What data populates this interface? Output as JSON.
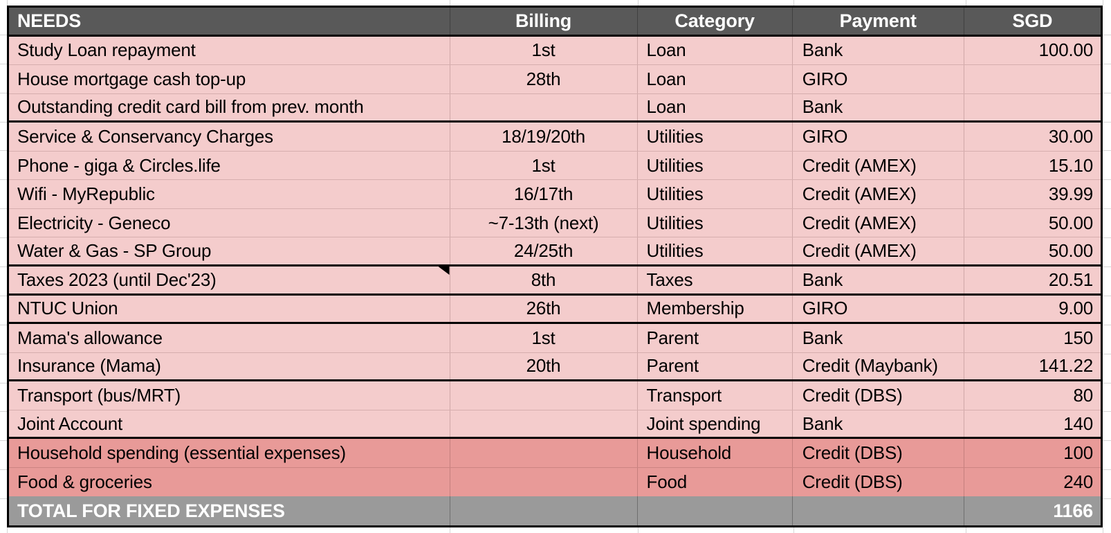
{
  "table": {
    "header": {
      "name": "NEEDS",
      "billing": "Billing",
      "category": "Category",
      "payment": "Payment",
      "amount": "SGD"
    },
    "rows": [
      {
        "name": "Study Loan repayment",
        "billing": "1st",
        "category": "Loan",
        "payment": "Bank",
        "amount": "100.00",
        "highlight": false,
        "section_end": false,
        "has_note_marker": false
      },
      {
        "name": "House mortgage cash top-up",
        "billing": "28th",
        "category": "Loan",
        "payment": "GIRO",
        "amount": "",
        "highlight": false,
        "section_end": false,
        "has_note_marker": false
      },
      {
        "name": "Outstanding credit card bill from prev. month",
        "billing": "",
        "category": "Loan",
        "payment": "Bank",
        "amount": "",
        "highlight": false,
        "section_end": true,
        "has_note_marker": false
      },
      {
        "name": "Service & Conservancy Charges",
        "billing": "18/19/20th",
        "category": "Utilities",
        "payment": "GIRO",
        "amount": "30.00",
        "highlight": false,
        "section_end": false,
        "has_note_marker": false
      },
      {
        "name": "Phone - giga & Circles.life",
        "billing": "1st",
        "category": "Utilities",
        "payment": "Credit (AMEX)",
        "amount": "15.10",
        "highlight": false,
        "section_end": false,
        "has_note_marker": false
      },
      {
        "name": "Wifi - MyRepublic",
        "billing": "16/17th",
        "category": "Utilities",
        "payment": "Credit (AMEX)",
        "amount": "39.99",
        "highlight": false,
        "section_end": false,
        "has_note_marker": false
      },
      {
        "name": "Electricity - Geneco",
        "billing": "~7-13th (next)",
        "category": "Utilities",
        "payment": "Credit (AMEX)",
        "amount": "50.00",
        "highlight": false,
        "section_end": false,
        "has_note_marker": false
      },
      {
        "name": "Water & Gas - SP Group",
        "billing": "24/25th",
        "category": "Utilities",
        "payment": "Credit (AMEX)",
        "amount": "50.00",
        "highlight": false,
        "section_end": true,
        "has_note_marker": false
      },
      {
        "name": "Taxes 2023 (until Dec'23)",
        "billing": "8th",
        "category": "Taxes",
        "payment": "Bank",
        "amount": "20.51",
        "highlight": false,
        "section_end": true,
        "has_note_marker": true
      },
      {
        "name": "NTUC Union",
        "billing": "26th",
        "category": "Membership",
        "payment": "GIRO",
        "amount": "9.00",
        "highlight": false,
        "section_end": true,
        "has_note_marker": false
      },
      {
        "name": "Mama's allowance",
        "billing": "1st",
        "category": "Parent",
        "payment": "Bank",
        "amount": "150",
        "highlight": false,
        "section_end": false,
        "has_note_marker": false
      },
      {
        "name": "Insurance (Mama)",
        "billing": "20th",
        "category": "Parent",
        "payment": "Credit (Maybank)",
        "amount": "141.22",
        "highlight": false,
        "section_end": true,
        "has_note_marker": false
      },
      {
        "name": "Transport (bus/MRT)",
        "billing": "",
        "category": "Transport",
        "payment": "Credit (DBS)",
        "amount": "80",
        "highlight": false,
        "section_end": false,
        "has_note_marker": false
      },
      {
        "name": "Joint Account",
        "billing": "",
        "category": "Joint spending",
        "payment": "Bank",
        "amount": "140",
        "highlight": false,
        "section_end": true,
        "has_note_marker": false
      },
      {
        "name": "Household spending (essential expenses)",
        "billing": "",
        "category": "Household",
        "payment": "Credit (DBS)",
        "amount": "100",
        "highlight": true,
        "section_end": false,
        "has_note_marker": false
      },
      {
        "name": "Food & groceries",
        "billing": "",
        "category": "Food",
        "payment": "Credit (DBS)",
        "amount": "240",
        "highlight": true,
        "section_end": true,
        "has_note_marker": false
      }
    ],
    "footer": {
      "label": "TOTAL FOR FIXED EXPENSES",
      "billing": "",
      "category": "",
      "payment": "",
      "amount": "1166"
    }
  },
  "colors": {
    "header_bg": "#595959",
    "row_light": "#f4cccc",
    "row_dark": "#e89a98",
    "footer_bg": "#9a9a9a",
    "grid_black": "#000000",
    "margin_gridline": "#d6d6d6"
  }
}
